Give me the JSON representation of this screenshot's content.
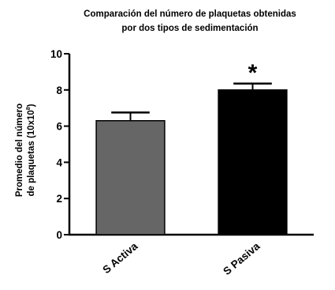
{
  "chart_data": {
    "type": "bar",
    "title_line1": "Comparación del número de plaquetas obtenidas",
    "title_line2": "por dos tipos de sedimentación",
    "ylabel_line1": "Promedio del número",
    "ylabel_line2_main": "de plaquetas (10x10",
    "ylabel_line2_sup": "8",
    "ylabel_line2_end": ")",
    "xlabel": "",
    "categories": [
      "S Activa",
      "S Pasiva"
    ],
    "values": [
      6.3,
      8.0
    ],
    "errors": [
      0.45,
      0.35
    ],
    "significance_markers": [
      "",
      "*"
    ],
    "bar_colors": [
      "#666666",
      "#000000"
    ],
    "ylim": [
      0,
      10
    ],
    "yticks": [
      "0",
      "2",
      "4",
      "6",
      "8",
      "10"
    ],
    "grid": false
  }
}
